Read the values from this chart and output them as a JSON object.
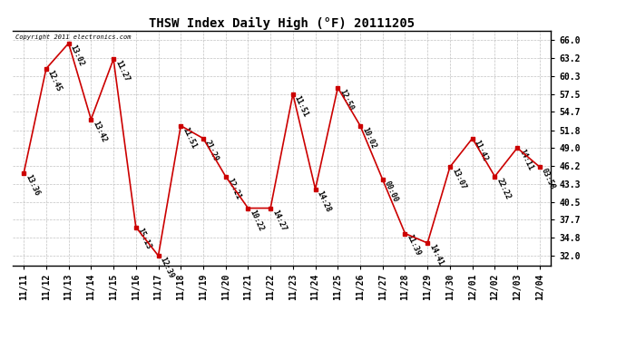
{
  "title": "THSW Index Daily High (°F) 20111205",
  "copyright": "Copyright 2011 electronics.com",
  "x_labels": [
    "11/11",
    "11/12",
    "11/13",
    "11/14",
    "11/15",
    "11/16",
    "11/17",
    "11/18",
    "11/19",
    "11/20",
    "11/21",
    "11/22",
    "11/23",
    "11/24",
    "11/25",
    "11/26",
    "11/27",
    "11/28",
    "11/29",
    "11/30",
    "12/01",
    "12/02",
    "12/03",
    "12/04"
  ],
  "y_values": [
    45.0,
    61.5,
    65.5,
    53.5,
    63.0,
    36.5,
    32.0,
    52.5,
    50.5,
    44.5,
    39.5,
    39.5,
    57.5,
    42.5,
    58.5,
    52.5,
    44.0,
    35.5,
    34.0,
    46.0,
    50.5,
    44.5,
    49.0,
    46.0
  ],
  "point_labels": [
    "13:36",
    "12:45",
    "13:02",
    "13:42",
    "11:27",
    "15:13",
    "12:39",
    "11:51",
    "21:29",
    "12:21",
    "10:22",
    "14:27",
    "11:51",
    "14:28",
    "12:50",
    "10:02",
    "00:00",
    "11:39",
    "14:41",
    "13:07",
    "11:42",
    "22:22",
    "14:11",
    "03:58"
  ],
  "y_ticks": [
    32.0,
    34.8,
    37.7,
    40.5,
    43.3,
    46.2,
    49.0,
    51.8,
    54.7,
    57.5,
    60.3,
    63.2,
    66.0
  ],
  "y_min": 30.5,
  "y_max": 67.5,
  "line_color": "#cc0000",
  "marker_color": "#cc0000",
  "bg_color": "#ffffff",
  "grid_color": "#bbbbbb",
  "title_fontsize": 10,
  "label_fontsize": 6,
  "tick_fontsize": 7,
  "copyright_fontsize": 5
}
